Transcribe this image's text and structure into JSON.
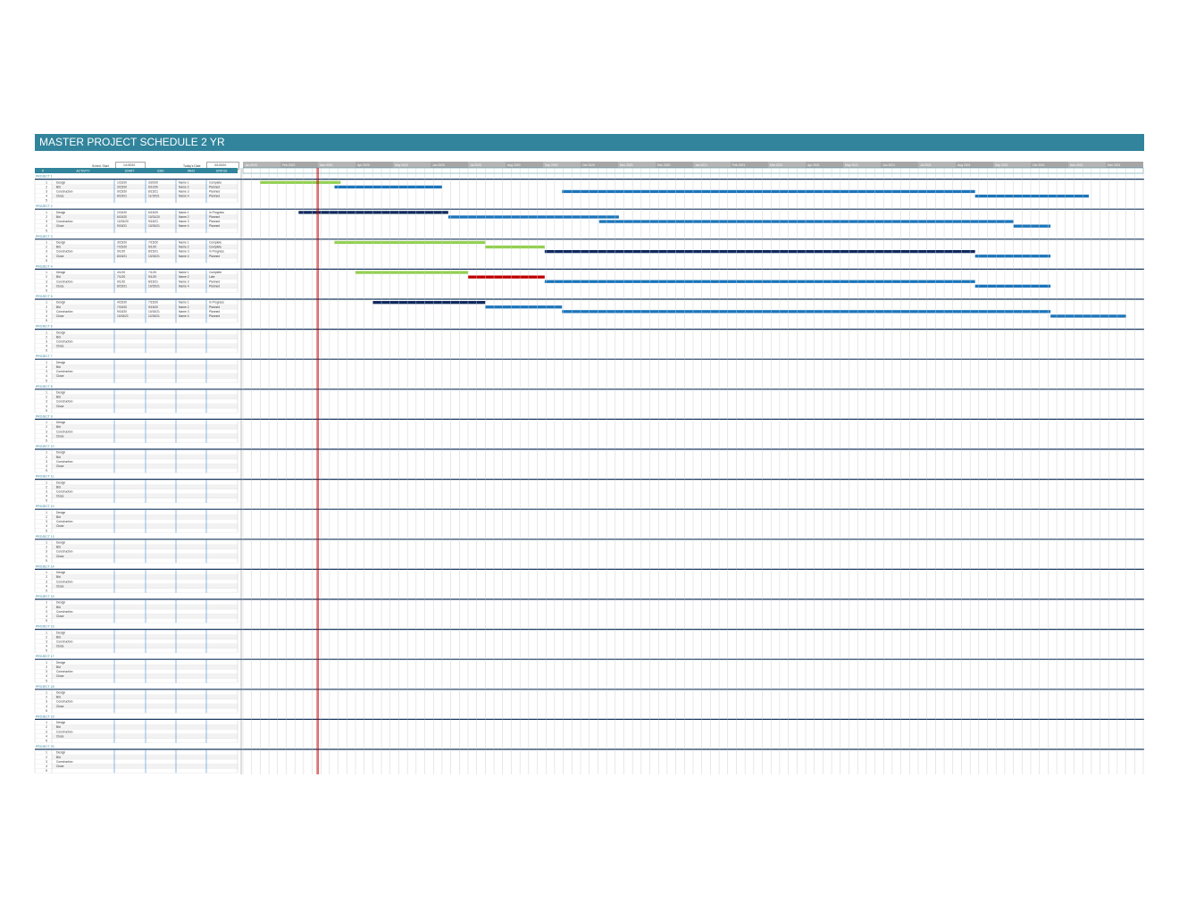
{
  "title": "MASTER PROJECT SCHEDULE 2 YR",
  "schedule_start": {
    "label": "Sched. Start",
    "value": "1/1/2020"
  },
  "todays_date": {
    "label": "Today's Date",
    "value": "3/1/2020"
  },
  "columns": [
    "#",
    "ACTIVITY",
    "START",
    "END",
    "WHO",
    "STATUS"
  ],
  "months": [
    "Jan 2020",
    "Feb 2020",
    "Mar 2020",
    "Apr 2020",
    "May 2020",
    "Jun 2020",
    "Jul 2020",
    "Aug 2020",
    "Sep 2020",
    "Oct 2020",
    "Nov 2020",
    "Dec 2020",
    "Jan 2021",
    "Feb 2021",
    "Mar 2021",
    "Apr 2021",
    "May 2021",
    "Jun 2021",
    "Jul 2021",
    "Aug 2021",
    "Sep 2021",
    "Oct 2021",
    "Nov 2021",
    "Dec 2021"
  ],
  "colors": {
    "header": "#31849b",
    "complete": "#92d050",
    "in_progress": "#0f2a5e",
    "planned": "#1b75bb",
    "late": "#c00000",
    "today": "#c00000",
    "col_header": "#31849b"
  },
  "projects": [
    {
      "name": "PROJECT 1",
      "tasks": [
        {
          "n": "1",
          "activity": "Design",
          "start": "1/15/20",
          "end": "3/20/20",
          "who": "Name 1",
          "status": "Complete"
        },
        {
          "n": "2",
          "activity": "Bid",
          "start": "3/15/20",
          "end": "6/10/20",
          "who": "Name 2",
          "status": "Planned"
        },
        {
          "n": "3",
          "activity": "Construction",
          "start": "9/15/20",
          "end": "8/15/21",
          "who": "Name 3",
          "status": "Planned"
        },
        {
          "n": "4",
          "activity": "Close",
          "start": "8/15/21",
          "end": "11/15/21",
          "who": "Name 4",
          "status": "Planned"
        },
        {
          "n": "5",
          "activity": "",
          "start": "",
          "end": "",
          "who": "",
          "status": ""
        }
      ]
    },
    {
      "name": "PROJECT 2",
      "tasks": [
        {
          "n": "1",
          "activity": "Design",
          "start": "2/15/20",
          "end": "6/15/20",
          "who": "Name 1",
          "status": "In Progress"
        },
        {
          "n": "2",
          "activity": "Bid",
          "start": "6/15/20",
          "end": "10/31/20",
          "who": "Name 2",
          "status": "Planned"
        },
        {
          "n": "3",
          "activity": "Construction",
          "start": "10/15/20",
          "end": "9/15/21",
          "who": "Name 3",
          "status": "Planned"
        },
        {
          "n": "4",
          "activity": "Close",
          "start": "9/15/21",
          "end": "10/15/21",
          "who": "Name 4",
          "status": "Planned"
        },
        {
          "n": "5",
          "activity": "",
          "start": "",
          "end": "",
          "who": "",
          "status": ""
        }
      ]
    },
    {
      "name": "PROJECT 3",
      "tasks": [
        {
          "n": "1",
          "activity": "Design",
          "start": "3/15/20",
          "end": "7/15/20",
          "who": "Name 1",
          "status": "Complete"
        },
        {
          "n": "2",
          "activity": "Bid",
          "start": "7/15/20",
          "end": "9/1/20",
          "who": "Name 2",
          "status": "Complete"
        },
        {
          "n": "3",
          "activity": "Construction",
          "start": "9/1/20",
          "end": "8/15/21",
          "who": "Name 3",
          "status": "In Progress"
        },
        {
          "n": "4",
          "activity": "Close",
          "start": "8/15/21",
          "end": "10/15/21",
          "who": "Name 4",
          "status": "Planned"
        },
        {
          "n": "5",
          "activity": "",
          "start": "",
          "end": "",
          "who": "",
          "status": ""
        }
      ]
    },
    {
      "name": "PROJECT 4",
      "tasks": [
        {
          "n": "1",
          "activity": "Design",
          "start": "4/1/20",
          "end": "7/1/20",
          "who": "Name 1",
          "status": "Complete"
        },
        {
          "n": "2",
          "activity": "Bid",
          "start": "7/1/20",
          "end": "9/1/20",
          "who": "Name 2",
          "status": "Late"
        },
        {
          "n": "3",
          "activity": "Construction",
          "start": "9/1/20",
          "end": "8/15/21",
          "who": "Name 3",
          "status": "Planned"
        },
        {
          "n": "4",
          "activity": "Close",
          "start": "8/15/21",
          "end": "10/15/21",
          "who": "Name 4",
          "status": "Planned"
        },
        {
          "n": "5",
          "activity": "",
          "start": "",
          "end": "",
          "who": "",
          "status": ""
        }
      ]
    },
    {
      "name": "PROJECT 5",
      "tasks": [
        {
          "n": "1",
          "activity": "Design",
          "start": "4/15/20",
          "end": "7/15/20",
          "who": "Name 1",
          "status": "In Progress"
        },
        {
          "n": "2",
          "activity": "Bid",
          "start": "7/15/20",
          "end": "9/15/20",
          "who": "Name 2",
          "status": "Planned"
        },
        {
          "n": "3",
          "activity": "Construction",
          "start": "9/15/20",
          "end": "10/15/21",
          "who": "Name 3",
          "status": "Planned"
        },
        {
          "n": "4",
          "activity": "Close",
          "start": "10/15/21",
          "end": "12/15/21",
          "who": "Name 4",
          "status": "Planned"
        },
        {
          "n": "5",
          "activity": "",
          "start": "",
          "end": "",
          "who": "",
          "status": ""
        }
      ]
    },
    {
      "name": "PROJECT 6",
      "tasks": [
        {
          "n": "1",
          "activity": "Design"
        },
        {
          "n": "2",
          "activity": "Bid"
        },
        {
          "n": "3",
          "activity": "Construction"
        },
        {
          "n": "4",
          "activity": "Close"
        },
        {
          "n": "5",
          "activity": ""
        }
      ]
    },
    {
      "name": "PROJECT 7",
      "tasks": [
        {
          "n": "1",
          "activity": "Design"
        },
        {
          "n": "2",
          "activity": "Bid"
        },
        {
          "n": "3",
          "activity": "Construction"
        },
        {
          "n": "4",
          "activity": "Close"
        },
        {
          "n": "5",
          "activity": ""
        }
      ]
    },
    {
      "name": "PROJECT 8",
      "tasks": [
        {
          "n": "1",
          "activity": "Design"
        },
        {
          "n": "2",
          "activity": "Bid"
        },
        {
          "n": "3",
          "activity": "Construction"
        },
        {
          "n": "4",
          "activity": "Close"
        },
        {
          "n": "5",
          "activity": ""
        }
      ]
    },
    {
      "name": "PROJECT 9",
      "tasks": [
        {
          "n": "1",
          "activity": "Design"
        },
        {
          "n": "2",
          "activity": "Bid"
        },
        {
          "n": "3",
          "activity": "Construction"
        },
        {
          "n": "4",
          "activity": "Close"
        },
        {
          "n": "5",
          "activity": ""
        }
      ]
    },
    {
      "name": "PROJECT 10",
      "tasks": [
        {
          "n": "1",
          "activity": "Design"
        },
        {
          "n": "2",
          "activity": "Bid"
        },
        {
          "n": "3",
          "activity": "Construction"
        },
        {
          "n": "4",
          "activity": "Close"
        },
        {
          "n": "5",
          "activity": ""
        }
      ]
    },
    {
      "name": "PROJECT 11",
      "tasks": [
        {
          "n": "1",
          "activity": "Design"
        },
        {
          "n": "2",
          "activity": "Bid"
        },
        {
          "n": "3",
          "activity": "Construction"
        },
        {
          "n": "4",
          "activity": "Close"
        },
        {
          "n": "5",
          "activity": ""
        }
      ]
    },
    {
      "name": "PROJECT 12",
      "tasks": [
        {
          "n": "1",
          "activity": "Design"
        },
        {
          "n": "2",
          "activity": "Bid"
        },
        {
          "n": "3",
          "activity": "Construction"
        },
        {
          "n": "4",
          "activity": "Close"
        },
        {
          "n": "5",
          "activity": ""
        }
      ]
    },
    {
      "name": "PROJECT 13",
      "tasks": [
        {
          "n": "1",
          "activity": "Design"
        },
        {
          "n": "2",
          "activity": "Bid"
        },
        {
          "n": "3",
          "activity": "Construction"
        },
        {
          "n": "4",
          "activity": "Close"
        },
        {
          "n": "5",
          "activity": ""
        }
      ]
    },
    {
      "name": "PROJECT 14",
      "tasks": [
        {
          "n": "1",
          "activity": "Design"
        },
        {
          "n": "2",
          "activity": "Bid"
        },
        {
          "n": "3",
          "activity": "Construction"
        },
        {
          "n": "4",
          "activity": "Close"
        },
        {
          "n": "5",
          "activity": ""
        }
      ]
    },
    {
      "name": "PROJECT 15",
      "tasks": [
        {
          "n": "1",
          "activity": "Design"
        },
        {
          "n": "2",
          "activity": "Bid"
        },
        {
          "n": "3",
          "activity": "Construction"
        },
        {
          "n": "4",
          "activity": "Close"
        },
        {
          "n": "5",
          "activity": ""
        }
      ]
    },
    {
      "name": "PROJECT 16",
      "tasks": [
        {
          "n": "1",
          "activity": "Design"
        },
        {
          "n": "2",
          "activity": "Bid"
        },
        {
          "n": "3",
          "activity": "Construction"
        },
        {
          "n": "4",
          "activity": "Close"
        },
        {
          "n": "5",
          "activity": ""
        }
      ]
    },
    {
      "name": "PROJECT 17",
      "tasks": [
        {
          "n": "1",
          "activity": "Design"
        },
        {
          "n": "2",
          "activity": "Bid"
        },
        {
          "n": "3",
          "activity": "Construction"
        },
        {
          "n": "4",
          "activity": "Close"
        },
        {
          "n": "5",
          "activity": ""
        }
      ]
    },
    {
      "name": "PROJECT 18",
      "tasks": [
        {
          "n": "1",
          "activity": "Design"
        },
        {
          "n": "2",
          "activity": "Bid"
        },
        {
          "n": "3",
          "activity": "Construction"
        },
        {
          "n": "4",
          "activity": "Close"
        },
        {
          "n": "5",
          "activity": ""
        }
      ]
    },
    {
      "name": "PROJECT 19",
      "tasks": [
        {
          "n": "1",
          "activity": "Design"
        },
        {
          "n": "2",
          "activity": "Bid"
        },
        {
          "n": "3",
          "activity": "Construction"
        },
        {
          "n": "4",
          "activity": "Close"
        },
        {
          "n": "5",
          "activity": ""
        }
      ]
    },
    {
      "name": "PROJECT 20",
      "tasks": [
        {
          "n": "1",
          "activity": "Design"
        },
        {
          "n": "2",
          "activity": "Bid"
        },
        {
          "n": "3",
          "activity": "Construction"
        },
        {
          "n": "4",
          "activity": "Close"
        },
        {
          "n": "5",
          "activity": ""
        }
      ]
    }
  ]
}
